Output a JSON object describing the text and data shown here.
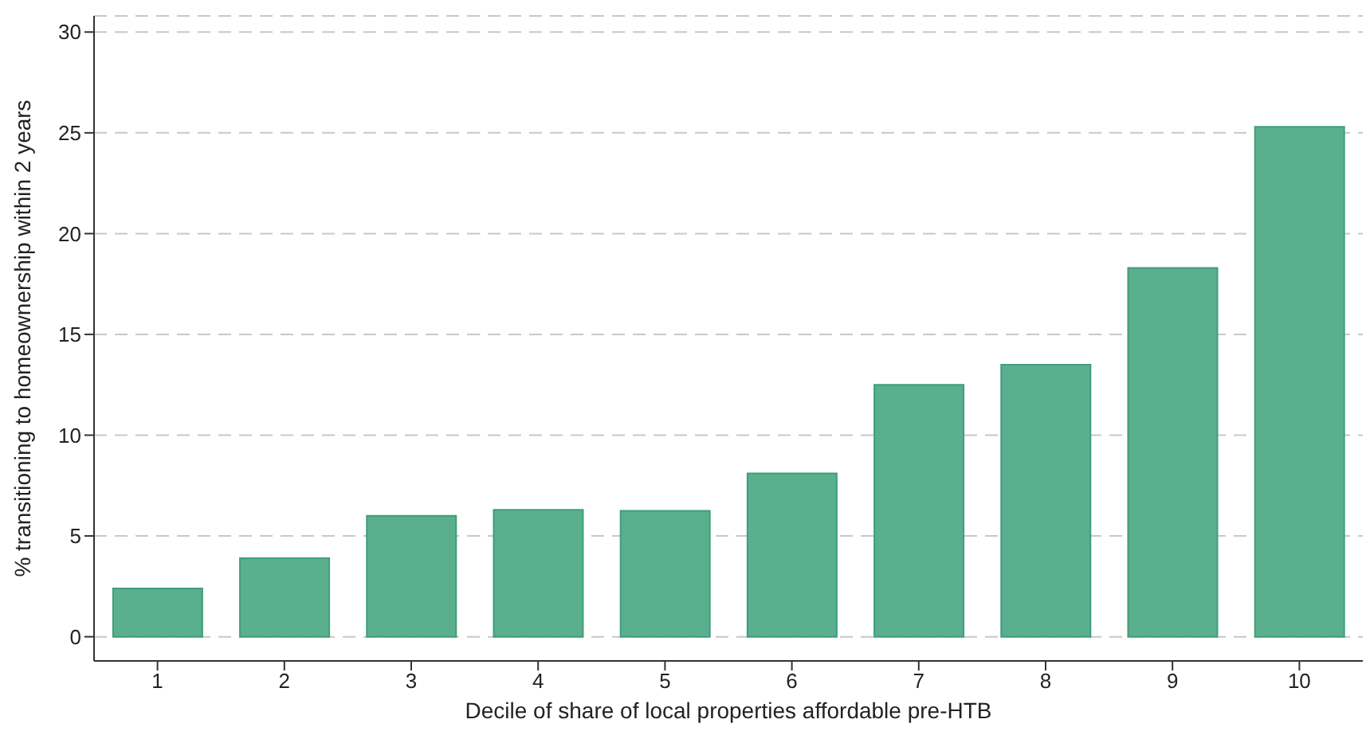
{
  "chart_data": {
    "type": "bar",
    "xlabel": "Decile of share of local properties affordable pre-HTB",
    "ylabel": "% transitioning to homeownership within 2 years",
    "categories": [
      "1",
      "2",
      "3",
      "4",
      "5",
      "6",
      "7",
      "8",
      "9",
      "10"
    ],
    "values": [
      2.4,
      3.9,
      6.0,
      6.3,
      6.25,
      8.1,
      12.5,
      13.5,
      18.3,
      25.3
    ],
    "color": "#5aaf8f",
    "ylim": [
      -1.2,
      30.8
    ],
    "yticks": [
      0,
      5,
      10,
      15,
      20,
      25,
      30
    ],
    "grid": "y"
  }
}
